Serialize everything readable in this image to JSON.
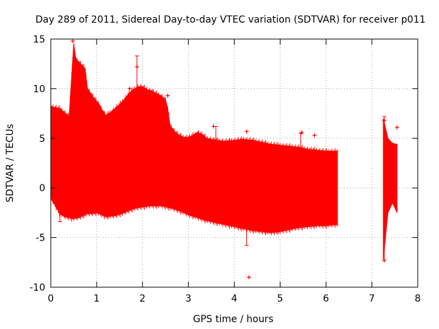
{
  "chart_data": {
    "type": "scatter",
    "title": "Day 289 of 2011, Sidereal Day-to-day VTEC variation (SDTVAR) for receiver p011",
    "xlabel": "GPS time / hours",
    "ylabel": "SDTVAR / TECUs",
    "xlim": [
      0,
      8
    ],
    "ylim": [
      -10,
      15
    ],
    "grid": true,
    "x_ticks": [
      "0",
      "1",
      "2",
      "3",
      "4",
      "5",
      "6",
      "7",
      "8"
    ],
    "y_ticks": [
      "-10",
      "-5",
      "0",
      "5",
      "10",
      "15"
    ],
    "series": [
      {
        "name": "SDTVAR",
        "color": "#ff0000",
        "upper_envelope": {
          "x": [
            0.0,
            0.2,
            0.4,
            0.5,
            0.55,
            0.65,
            0.75,
            0.8,
            0.95,
            1.0,
            1.05,
            1.1,
            1.2,
            1.3,
            1.4,
            1.5,
            1.6,
            1.7,
            1.8,
            1.9,
            2.0,
            2.1,
            2.2,
            2.3,
            2.4,
            2.5,
            2.55,
            2.6,
            2.7,
            2.8,
            2.9,
            3.0,
            3.1,
            3.2,
            3.3,
            3.4,
            3.5,
            3.6,
            3.8,
            4.0,
            4.2,
            4.4,
            4.6,
            4.8,
            5.0,
            5.2,
            5.4,
            5.6,
            5.8,
            6.0,
            6.2,
            6.25
          ],
          "y": [
            8.2,
            8.0,
            7.2,
            14.5,
            13.0,
            12.5,
            12.0,
            10.0,
            9.0,
            8.7,
            8.5,
            8.0,
            7.3,
            7.6,
            8.0,
            8.4,
            8.9,
            9.5,
            9.9,
            10.2,
            10.2,
            9.9,
            9.8,
            9.5,
            9.3,
            8.9,
            8.0,
            6.3,
            5.7,
            5.3,
            5.1,
            5.1,
            5.3,
            5.6,
            5.4,
            5.0,
            4.9,
            4.8,
            4.7,
            4.8,
            4.9,
            4.8,
            4.6,
            4.4,
            4.3,
            4.2,
            4.1,
            3.9,
            3.8,
            3.7,
            3.7,
            3.7
          ]
        },
        "lower_envelope": {
          "x": [
            0.0,
            0.1,
            0.2,
            0.3,
            0.4,
            0.5,
            0.6,
            0.7,
            0.8,
            0.9,
            1.0,
            1.1,
            1.2,
            1.4,
            1.6,
            1.8,
            2.0,
            2.2,
            2.4,
            2.6,
            2.8,
            3.0,
            3.2,
            3.4,
            3.6,
            3.8,
            4.0,
            4.2,
            4.4,
            4.6,
            4.8,
            5.0,
            5.2,
            5.4,
            5.6,
            5.8,
            6.0,
            6.2,
            6.25
          ],
          "y": [
            -1.0,
            -1.8,
            -2.6,
            -2.9,
            -3.0,
            -3.1,
            -3.0,
            -2.8,
            -2.6,
            -2.6,
            -2.5,
            -2.7,
            -2.9,
            -2.8,
            -2.5,
            -2.1,
            -1.9,
            -1.8,
            -1.8,
            -2.0,
            -2.3,
            -2.7,
            -3.0,
            -3.3,
            -3.5,
            -3.7,
            -3.9,
            -4.1,
            -4.3,
            -4.4,
            -4.5,
            -4.4,
            -4.2,
            -4.0,
            -3.9,
            -3.8,
            -3.8,
            -3.7,
            -3.7
          ]
        },
        "second_segment": {
          "x_range": [
            7.25,
            7.55
          ],
          "upper": [
            7.0,
            5.0,
            4.5,
            4.4
          ],
          "lower": [
            -7.2,
            -2.5,
            -1.5,
            -2.5
          ]
        },
        "isolated_points": [
          {
            "x": 0.48,
            "y": 14.8
          },
          {
            "x": 0.65,
            "y": 8.0
          },
          {
            "x": 1.72,
            "y": 10.0
          },
          {
            "x": 1.88,
            "y": 12.2
          },
          {
            "x": 2.55,
            "y": 9.3
          },
          {
            "x": 3.55,
            "y": 6.2
          },
          {
            "x": 4.27,
            "y": 5.7
          },
          {
            "x": 4.32,
            "y": -9.0
          },
          {
            "x": 5.47,
            "y": 5.6
          },
          {
            "x": 5.75,
            "y": 5.3
          },
          {
            "x": 7.27,
            "y": 6.8
          },
          {
            "x": 7.27,
            "y": -7.3
          },
          {
            "x": 7.55,
            "y": 6.1
          }
        ],
        "error_bars": [
          {
            "x": 0.2,
            "low": -3.4,
            "high": -2.5
          },
          {
            "x": 1.88,
            "low": 10.0,
            "high": 13.3
          },
          {
            "x": 3.6,
            "low": 4.9,
            "high": 6.2
          },
          {
            "x": 4.27,
            "low": -5.8,
            "high": -3.8
          },
          {
            "x": 5.45,
            "low": 4.0,
            "high": 5.5
          },
          {
            "x": 7.27,
            "low": -7.3,
            "high": 7.2
          }
        ]
      }
    ]
  }
}
